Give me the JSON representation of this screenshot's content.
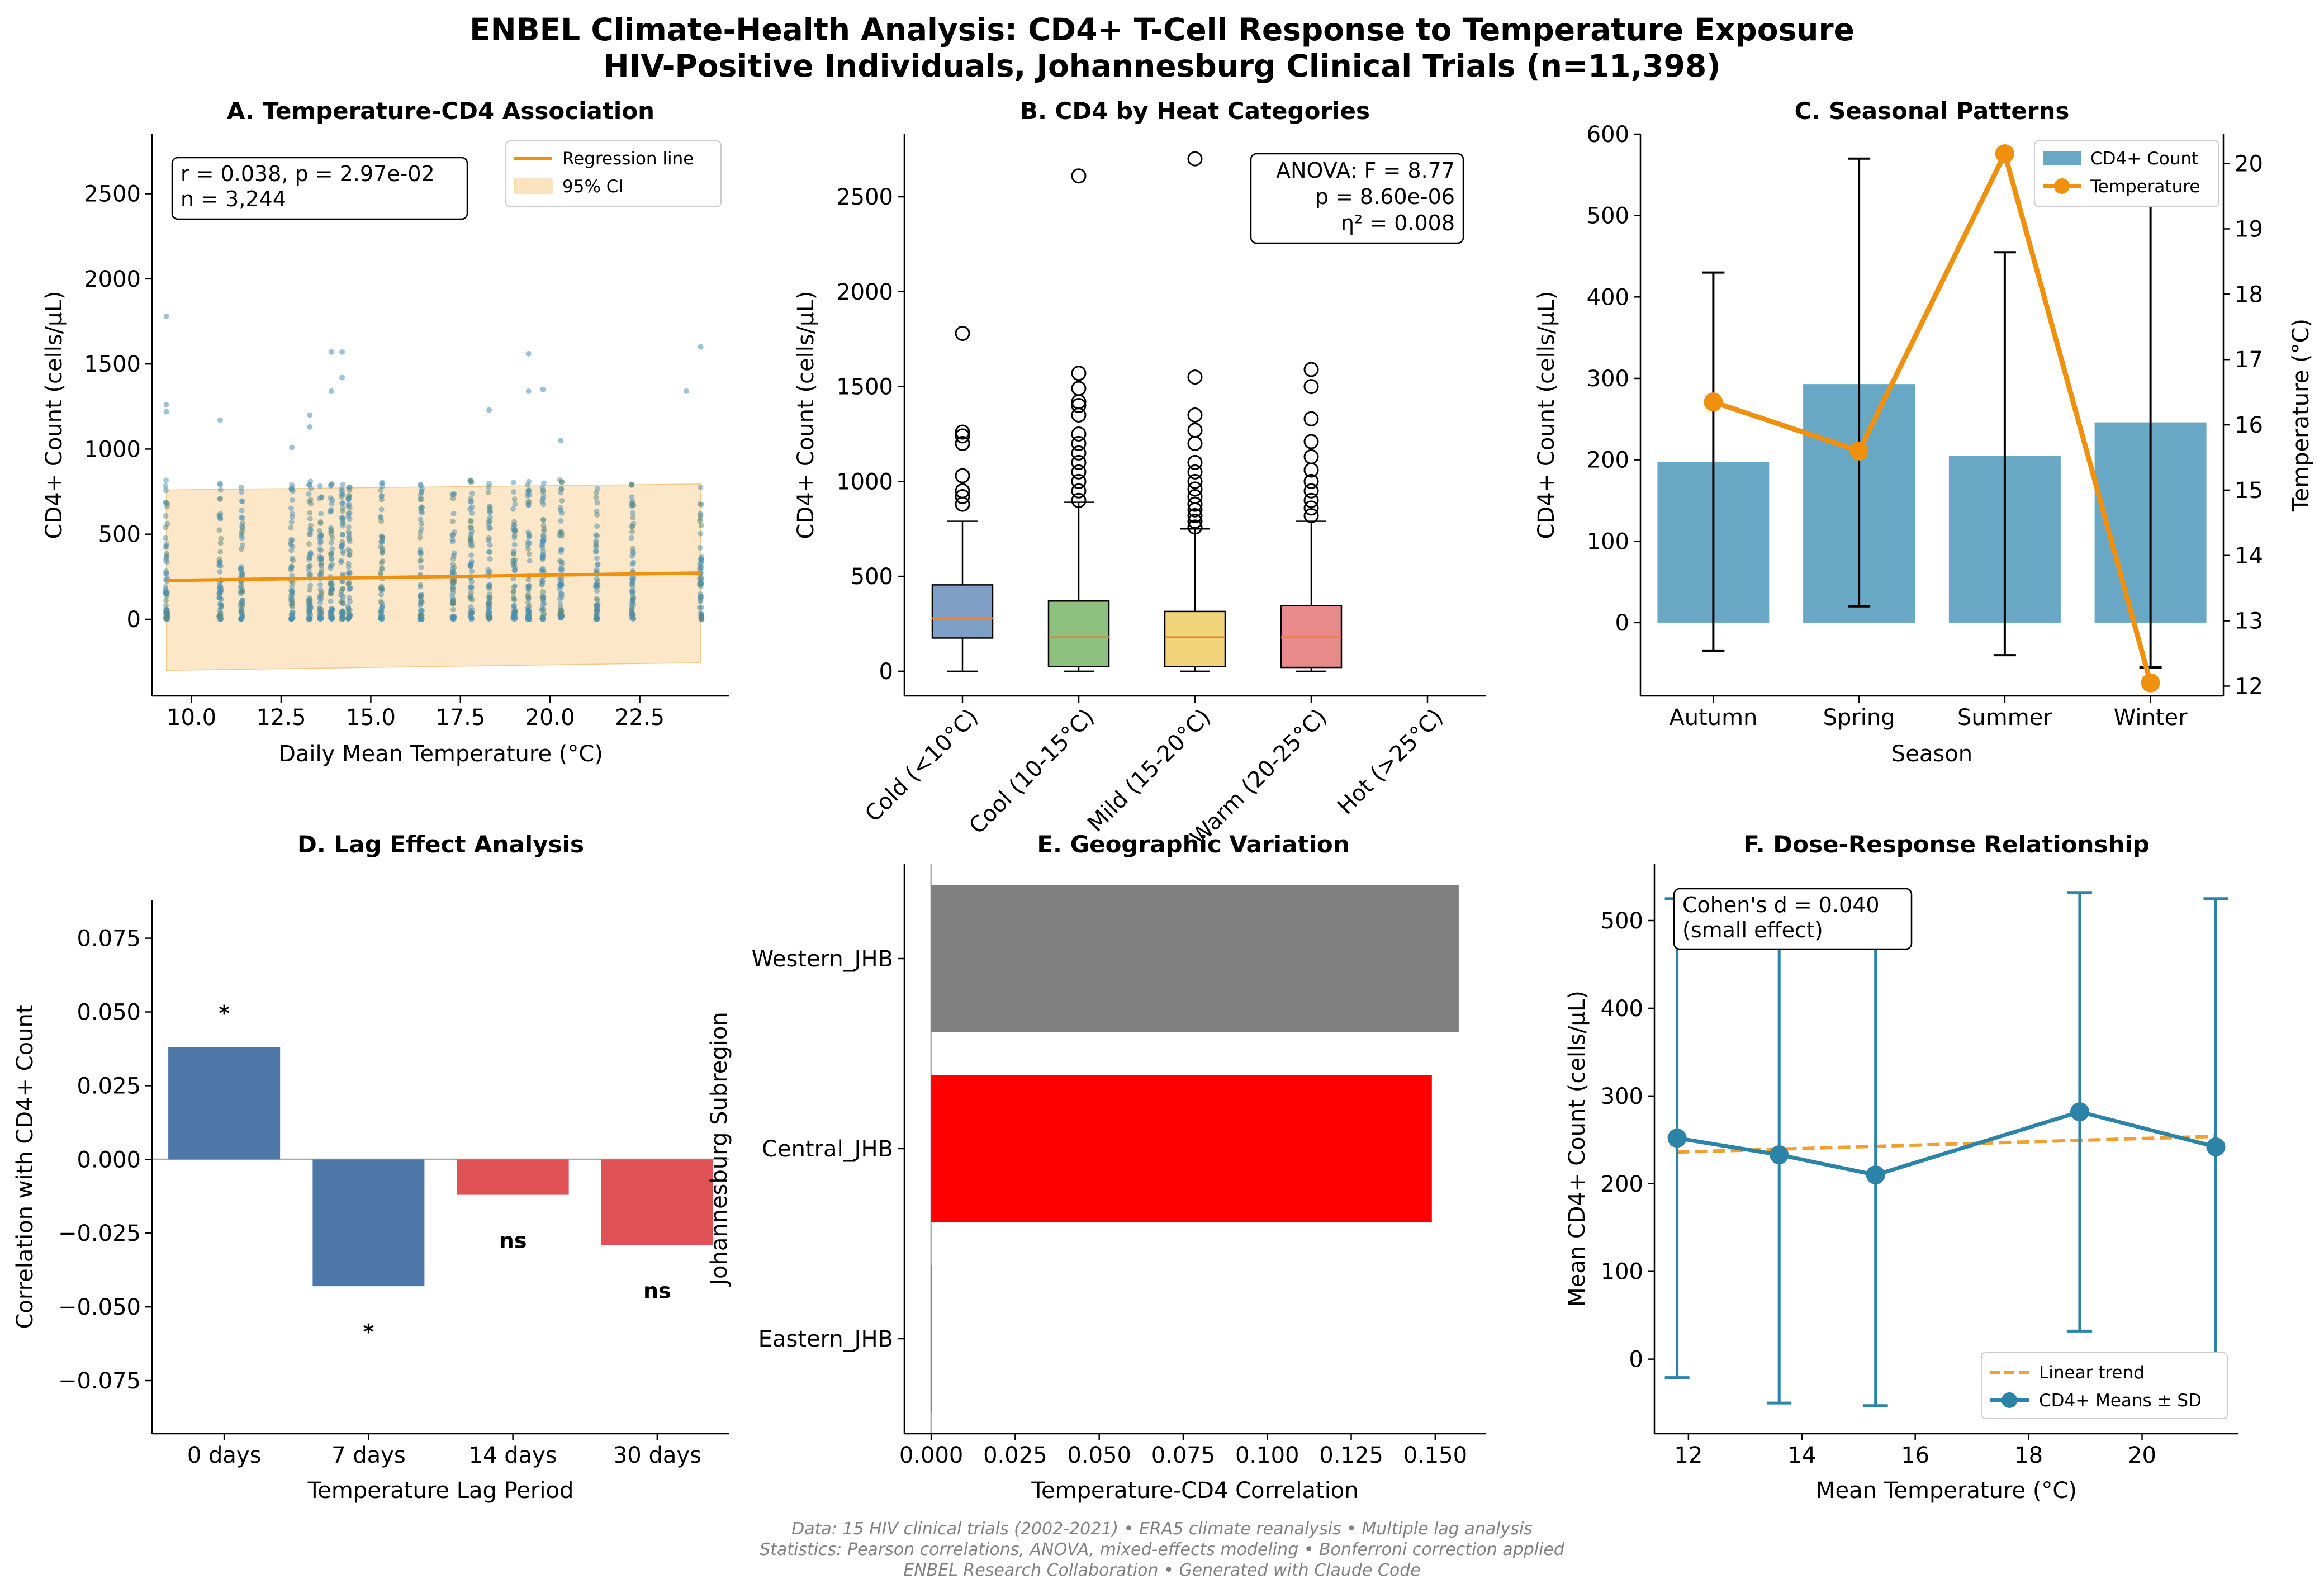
{
  "title_line1": "ENBEL Climate-Health Analysis: CD4+ T-Cell Response to Temperature Exposure",
  "title_line2": "HIV-Positive Individuals, Johannesburg Clinical Trials (n=11,398)",
  "footer": [
    "Data: 15 HIV clinical trials (2002-2021) • ERA5 climate reanalysis • Multiple lag analysis",
    "Statistics: Pearson correlations, ANOVA, mixed-effects modeling • Bonferroni correction applied",
    "ENBEL Research Collaboration • Generated with Claude Code"
  ],
  "colors": {
    "scatter": "#4a8fb5",
    "regression": "#f0900f",
    "ci": "#fbe3c0",
    "cd4_bar": "#68a8c5",
    "temperature": "#f0900f",
    "lag_sig": "#4e78a8",
    "lag_ns": "#e05156",
    "dose": "#2b83a8",
    "trend": "#f0a030"
  },
  "chart_data": [
    {
      "id": "A",
      "type": "scatter",
      "title": "A. Temperature-CD4 Association",
      "xlabel": "Daily Mean Temperature (°C)",
      "ylabel": "CD4+ Count (cells/µL)",
      "xlim": [
        8.9,
        25.0
      ],
      "ylim": [
        -450,
        2850
      ],
      "xticks": [
        "10.0",
        "12.5",
        "15.0",
        "17.5",
        "20.0",
        "22.5"
      ],
      "xtick_values": [
        10,
        12.5,
        15,
        17.5,
        20,
        22.5
      ],
      "yticks": [
        "0",
        "500",
        "1000",
        "1500",
        "2000",
        "2500"
      ],
      "ytick_values": [
        0,
        500,
        1000,
        1500,
        2000,
        2500
      ],
      "stats_lines": [
        "r = 0.038, p = 2.97e-02",
        "n = 3,244"
      ],
      "legend": [
        "Regression line",
        "95% CI"
      ],
      "regression": {
        "x": [
          9.3,
          24.2
        ],
        "y": [
          228,
          272
        ]
      },
      "ci_upper": [
        760,
        795
      ],
      "ci_lower": [
        -300,
        -255
      ],
      "temperature_clusters": [
        9.3,
        10.8,
        11.4,
        12.8,
        13.3,
        13.6,
        13.9,
        14.2,
        14.4,
        15.3,
        16.4,
        17.3,
        17.8,
        18.3,
        19.0,
        19.4,
        19.8,
        20.3,
        21.3,
        22.3,
        24.2
      ],
      "outliers": [
        {
          "x": 9.3,
          "y": 1780
        },
        {
          "x": 9.3,
          "y": 1260
        },
        {
          "x": 9.3,
          "y": 1220
        },
        {
          "x": 13.3,
          "y": 1200
        },
        {
          "x": 13.3,
          "y": 1130
        },
        {
          "x": 13.9,
          "y": 1570
        },
        {
          "x": 13.9,
          "y": 1340
        },
        {
          "x": 14.2,
          "y": 1570
        },
        {
          "x": 14.2,
          "y": 1420
        },
        {
          "x": 18.3,
          "y": 1230
        },
        {
          "x": 19.4,
          "y": 1560
        },
        {
          "x": 19.4,
          "y": 1340
        },
        {
          "x": 19.8,
          "y": 1350
        },
        {
          "x": 20.3,
          "y": 1050
        },
        {
          "x": 23.8,
          "y": 1340
        },
        {
          "x": 24.2,
          "y": 1600
        },
        {
          "x": 10.8,
          "y": 1170
        },
        {
          "x": 12.8,
          "y": 1010
        }
      ]
    },
    {
      "id": "B",
      "type": "box",
      "title": "B. CD4 by Heat Categories",
      "ylabel": "CD4+ Count (cells/µL)",
      "categories": [
        "Cold (<10°C)",
        "Cool (10-15°C)",
        "Mild (15-20°C)",
        "Warm (20-25°C)",
        "Hot (>25°C)"
      ],
      "ylim": [
        -130,
        2830
      ],
      "yticks": [
        "0",
        "500",
        "1000",
        "1500",
        "2000",
        "2500"
      ],
      "ytick_values": [
        0,
        500,
        1000,
        1500,
        2000,
        2500
      ],
      "anova_lines": [
        "ANOVA: F = 8.77",
        "p = 8.60e-06",
        "η² = 0.008"
      ],
      "box_colors": [
        "#7f9fc6",
        "#8ec07f",
        "#f2d47a",
        "#e88a8a"
      ],
      "boxes": [
        {
          "min": 0,
          "q1": 175,
          "median": 280,
          "q3": 455,
          "max": 790,
          "fliers": [
            880,
            920,
            950,
            1030,
            1200,
            1240,
            1260,
            1780
          ]
        },
        {
          "min": 0,
          "q1": 25,
          "median": 180,
          "q3": 370,
          "max": 890,
          "fliers": [
            900,
            950,
            1000,
            1050,
            1100,
            1150,
            1200,
            1250,
            1350,
            1400,
            1420,
            1490,
            1570,
            2610
          ]
        },
        {
          "min": 0,
          "q1": 25,
          "median": 180,
          "q3": 315,
          "max": 750,
          "fliers": [
            760,
            790,
            820,
            850,
            880,
            920,
            960,
            1000,
            1050,
            1100,
            1200,
            1270,
            1350,
            1550,
            2700
          ]
        },
        {
          "min": 0,
          "q1": 20,
          "median": 180,
          "q3": 345,
          "max": 790,
          "fliers": [
            820,
            860,
            900,
            950,
            1000,
            1060,
            1130,
            1210,
            1330,
            1500,
            1590
          ]
        }
      ]
    },
    {
      "id": "C",
      "type": "bar",
      "title": "C. Seasonal Patterns",
      "xlabel": "Season",
      "ylabel": "CD4+ Count (cells/µL)",
      "ylabel_right": "Temperature (°C)",
      "categories": [
        "Autumn",
        "Spring",
        "Summer",
        "Winter"
      ],
      "ylim": [
        -90,
        600
      ],
      "yticks": [
        "0",
        "100",
        "200",
        "300",
        "400",
        "500",
        "600"
      ],
      "ytick_values": [
        0,
        100,
        200,
        300,
        400,
        500,
        600
      ],
      "y2lim": [
        11.85,
        20.45
      ],
      "y2ticks": [
        "12",
        "13",
        "14",
        "15",
        "16",
        "17",
        "18",
        "19",
        "20"
      ],
      "y2tick_values": [
        12,
        13,
        14,
        15,
        16,
        17,
        18,
        19,
        20
      ],
      "legend": [
        "CD4+ Count",
        "Temperature"
      ],
      "series": [
        {
          "name": "CD4+ Count",
          "values": [
            197,
            293,
            205,
            246
          ],
          "err_low": [
            -35,
            20,
            -40,
            -55
          ],
          "err_high": [
            430,
            570,
            455,
            550
          ]
        },
        {
          "name": "Temperature",
          "values": [
            16.35,
            15.6,
            20.15,
            12.05
          ]
        }
      ]
    },
    {
      "id": "D",
      "type": "bar",
      "title": "D. Lag Effect Analysis",
      "xlabel": "Temperature Lag Period",
      "ylabel": "Correlation with CD4+ Count",
      "categories": [
        "0 days",
        "7 days",
        "14 days",
        "30 days"
      ],
      "values": [
        0.038,
        -0.043,
        -0.012,
        -0.029
      ],
      "labels": [
        "*",
        "*",
        "ns",
        "ns"
      ],
      "significant": [
        true,
        true,
        false,
        false
      ],
      "ylim": [
        -0.093,
        0.088
      ],
      "yticks": [
        "−0.075",
        "−0.050",
        "−0.025",
        "0.000",
        "0.025",
        "0.050",
        "0.075"
      ],
      "ytick_values": [
        -0.075,
        -0.05,
        -0.025,
        0,
        0.025,
        0.05,
        0.075
      ]
    },
    {
      "id": "E",
      "type": "bar",
      "orientation": "horizontal",
      "title": "E. Geographic Variation",
      "xlabel": "Temperature-CD4 Correlation",
      "ylabel": "Johannesburg Subregion",
      "categories": [
        "Western_JHB",
        "Central_JHB",
        "Eastern_JHB"
      ],
      "values": [
        0.157,
        0.149,
        0.0
      ],
      "bar_colors": [
        "#808080",
        "#ff0000",
        "#808080"
      ],
      "xlim": [
        -0.008,
        0.165
      ],
      "xticks": [
        "0.000",
        "0.025",
        "0.050",
        "0.075",
        "0.100",
        "0.125",
        "0.150"
      ],
      "xtick_values": [
        0,
        0.025,
        0.05,
        0.075,
        0.1,
        0.125,
        0.15
      ]
    },
    {
      "id": "F",
      "type": "line",
      "title": "F. Dose-Response Relationship",
      "xlabel": "Mean Temperature (°C)",
      "ylabel": "Mean CD4+ Count (cells/µL)",
      "xlim": [
        11.4,
        21.7
      ],
      "ylim": [
        -85,
        565
      ],
      "xticks": [
        "12",
        "14",
        "16",
        "18",
        "20"
      ],
      "xtick_values": [
        12,
        14,
        16,
        18,
        20
      ],
      "yticks": [
        "0",
        "100",
        "200",
        "300",
        "400",
        "500"
      ],
      "ytick_values": [
        0,
        100,
        200,
        300,
        400,
        500
      ],
      "effect_lines": [
        "Cohen's d = 0.040",
        "(small effect)"
      ],
      "legend": [
        "Linear trend",
        "CD4+ Means ± SD"
      ],
      "series": [
        {
          "name": "CD4+ Means ± SD",
          "x": [
            11.8,
            13.6,
            15.3,
            18.9,
            21.3
          ],
          "y": [
            252,
            233,
            210,
            282,
            242
          ],
          "sd": [
            273,
            283,
            263,
            250,
            283
          ]
        },
        {
          "name": "Linear trend",
          "x": [
            11.8,
            21.3
          ],
          "y": [
            236,
            254
          ]
        }
      ]
    }
  ]
}
